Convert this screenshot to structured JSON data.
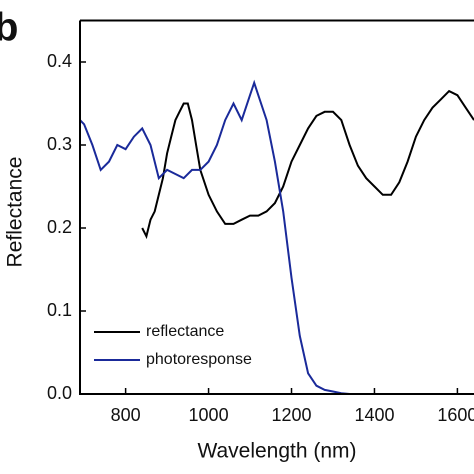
{
  "chart_data": {
    "type": "line",
    "panel_label": "b",
    "xlabel": "Wavelength (nm)",
    "ylabel": "Reflectance",
    "xlim": [
      690,
      1640
    ],
    "xticks": [
      800,
      1000,
      1200,
      1400,
      1600
    ],
    "ylim": [
      0,
      0.45
    ],
    "yticks": [
      {
        "value": 0,
        "label": "0.0"
      },
      0.1,
      0.2,
      0.3,
      0.4
    ],
    "legend": "lower left",
    "series": [
      {
        "name": "reflectance",
        "color": "#000000",
        "x": [
          840,
          850,
          860,
          870,
          880,
          890,
          900,
          910,
          920,
          930,
          940,
          950,
          960,
          970,
          980,
          1000,
          1020,
          1040,
          1060,
          1080,
          1100,
          1120,
          1140,
          1160,
          1180,
          1200,
          1220,
          1240,
          1260,
          1280,
          1300,
          1320,
          1340,
          1360,
          1380,
          1400,
          1420,
          1440,
          1460,
          1480,
          1500,
          1520,
          1540,
          1560,
          1580,
          1600,
          1620,
          1640
        ],
        "values": [
          0.2,
          0.19,
          0.21,
          0.22,
          0.24,
          0.26,
          0.29,
          0.31,
          0.33,
          0.34,
          0.35,
          0.35,
          0.33,
          0.3,
          0.27,
          0.24,
          0.22,
          0.205,
          0.205,
          0.21,
          0.215,
          0.215,
          0.22,
          0.23,
          0.25,
          0.28,
          0.3,
          0.32,
          0.335,
          0.34,
          0.34,
          0.33,
          0.3,
          0.275,
          0.26,
          0.25,
          0.24,
          0.24,
          0.255,
          0.28,
          0.31,
          0.33,
          0.345,
          0.355,
          0.365,
          0.36,
          0.345,
          0.33
        ]
      },
      {
        "name": "photoresponse",
        "color": "#1a2a9a",
        "x": [
          690,
          700,
          720,
          740,
          760,
          780,
          800,
          820,
          840,
          860,
          880,
          900,
          920,
          940,
          960,
          980,
          1000,
          1020,
          1040,
          1060,
          1080,
          1100,
          1110,
          1120,
          1140,
          1160,
          1180,
          1200,
          1220,
          1240,
          1260,
          1280,
          1300,
          1320,
          1340,
          1360
        ],
        "values": [
          0.33,
          0.325,
          0.3,
          0.27,
          0.28,
          0.3,
          0.295,
          0.31,
          0.32,
          0.3,
          0.26,
          0.27,
          0.265,
          0.26,
          0.27,
          0.27,
          0.28,
          0.3,
          0.33,
          0.35,
          0.33,
          0.36,
          0.375,
          0.36,
          0.33,
          0.28,
          0.22,
          0.14,
          0.07,
          0.025,
          0.01,
          0.005,
          0.003,
          0.001,
          0,
          0
        ]
      }
    ]
  }
}
